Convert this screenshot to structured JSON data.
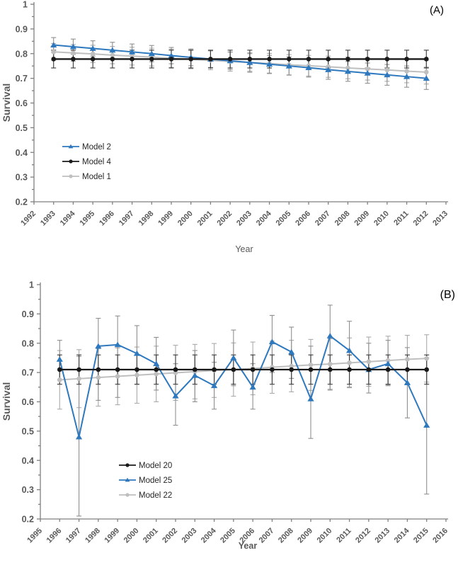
{
  "figure": {
    "background": "#ffffff"
  },
  "style": {
    "axis_color": "#7f7f7f",
    "tick_label_color": "#595959",
    "axis_label_color": "#595959",
    "legend_text_color": "#262626",
    "panel_label_color": "#000000",
    "blue": "#2e78be",
    "black": "#1a1a1a",
    "gray": "#bfbfbf"
  },
  "chart_data": [
    {
      "type": "line",
      "panel_label": "(A)",
      "xlabel": "Year",
      "ylabel": "Survival",
      "ylim": [
        0.2,
        1.0
      ],
      "ytick_labels": [
        "1",
        "0.9",
        "0.8",
        "0.7",
        "0.6",
        "0.5",
        "0.4",
        "0.3",
        "0.2"
      ],
      "ytick_values": [
        1,
        0.9,
        0.8,
        0.7,
        0.6,
        0.5,
        0.4,
        0.3,
        0.2
      ],
      "yminor_values": [
        0.95,
        0.85,
        0.75,
        0.65,
        0.55,
        0.45,
        0.35,
        0.25
      ],
      "xtick_labels": [
        "1992",
        "1993",
        "1994",
        "1995",
        "1996",
        "1997",
        "1998",
        "1999",
        "2000",
        "2001",
        "2002",
        "2003",
        "2004",
        "2005",
        "2006",
        "2007",
        "2008",
        "2009",
        "2010",
        "2011",
        "2012",
        "2013"
      ],
      "xlim": [
        1992,
        2013
      ],
      "grid": false,
      "legend_position": "inside-left",
      "series": [
        {
          "name": "Model 2",
          "marker": "triangle",
          "color": "#2e78be",
          "err_color": "#8f8f8f",
          "x": [
            1993,
            1994,
            1995,
            1996,
            1997,
            1998,
            1999,
            2000,
            2001,
            2002,
            2003,
            2004,
            2005,
            2006,
            2007,
            2008,
            2009,
            2010,
            2011,
            2012
          ],
          "y": [
            0.835,
            0.828,
            0.821,
            0.814,
            0.807,
            0.8,
            0.792,
            0.785,
            0.778,
            0.771,
            0.764,
            0.757,
            0.75,
            0.743,
            0.735,
            0.728,
            0.721,
            0.714,
            0.707,
            0.7
          ],
          "err_lo": [
            0.03,
            0.031,
            0.031,
            0.032,
            0.032,
            0.033,
            0.033,
            0.034,
            0.034,
            0.035,
            0.036,
            0.036,
            0.037,
            0.038,
            0.039,
            0.04,
            0.041,
            0.042,
            0.043,
            0.045
          ],
          "err_hi": [
            0.03,
            0.031,
            0.031,
            0.032,
            0.032,
            0.033,
            0.033,
            0.034,
            0.034,
            0.035,
            0.036,
            0.036,
            0.037,
            0.038,
            0.039,
            0.04,
            0.041,
            0.042,
            0.043,
            0.045
          ]
        },
        {
          "name": "Model 4",
          "marker": "circle",
          "color": "#1a1a1a",
          "err_color": "#3a3a3a",
          "x": [
            1993,
            1994,
            1995,
            1996,
            1997,
            1998,
            1999,
            2000,
            2001,
            2002,
            2003,
            2004,
            2005,
            2006,
            2007,
            2008,
            2009,
            2010,
            2011,
            2012
          ],
          "y": [
            0.778,
            0.778,
            0.778,
            0.778,
            0.778,
            0.778,
            0.778,
            0.778,
            0.778,
            0.778,
            0.778,
            0.778,
            0.778,
            0.778,
            0.778,
            0.778,
            0.778,
            0.778,
            0.778,
            0.778
          ],
          "err_lo": [
            0.036,
            0.036,
            0.036,
            0.036,
            0.036,
            0.036,
            0.036,
            0.036,
            0.036,
            0.036,
            0.036,
            0.036,
            0.036,
            0.036,
            0.036,
            0.036,
            0.036,
            0.036,
            0.036,
            0.036
          ],
          "err_hi": [
            0.036,
            0.036,
            0.036,
            0.036,
            0.036,
            0.036,
            0.036,
            0.036,
            0.036,
            0.036,
            0.036,
            0.036,
            0.036,
            0.036,
            0.036,
            0.036,
            0.036,
            0.036,
            0.036,
            0.036
          ]
        },
        {
          "name": "Model 1",
          "marker": "circle",
          "color": "#bfbfbf",
          "err_color": "#aaaaaa",
          "x": [
            1993,
            1994,
            1995,
            1996,
            1997,
            1998,
            1999,
            2000,
            2001,
            2002,
            2003,
            2004,
            2005,
            2006,
            2007,
            2008,
            2009,
            2010,
            2011,
            2012
          ],
          "y": [
            0.807,
            0.803,
            0.799,
            0.794,
            0.79,
            0.786,
            0.781,
            0.777,
            0.773,
            0.768,
            0.764,
            0.76,
            0.755,
            0.751,
            0.747,
            0.742,
            0.738,
            0.734,
            0.729,
            0.725
          ],
          "err_lo": [
            0.034,
            0.034,
            0.035,
            0.035,
            0.036,
            0.036,
            0.037,
            0.038,
            0.038,
            0.039,
            0.04,
            0.041,
            0.041,
            0.042,
            0.043,
            0.044,
            0.045,
            0.046,
            0.047,
            0.048
          ],
          "err_hi": [
            0.034,
            0.034,
            0.035,
            0.035,
            0.036,
            0.036,
            0.037,
            0.038,
            0.038,
            0.039,
            0.04,
            0.041,
            0.041,
            0.042,
            0.043,
            0.044,
            0.045,
            0.046,
            0.047,
            0.048
          ]
        }
      ]
    },
    {
      "type": "line",
      "panel_label": "(B)",
      "xlabel": "Year",
      "ylabel": "Survival",
      "ylim": [
        0.2,
        1.0
      ],
      "ytick_labels": [
        "1",
        "0.9",
        "0.8",
        "0.7",
        "0.6",
        "0.5",
        "0.4",
        "0.3",
        "0.2"
      ],
      "ytick_values": [
        1,
        0.9,
        0.8,
        0.7,
        0.6,
        0.5,
        0.4,
        0.3,
        0.2
      ],
      "yminor_values": [
        0.95,
        0.85,
        0.75,
        0.65,
        0.55,
        0.45,
        0.35,
        0.25
      ],
      "xtick_labels": [
        "1995",
        "1996",
        "1997",
        "1998",
        "1999",
        "2000",
        "2001",
        "2002",
        "2003",
        "2004",
        "2005",
        "2006",
        "2007",
        "2008",
        "2009",
        "2010",
        "2011",
        "2012",
        "2013",
        "2014",
        "2015",
        "2016"
      ],
      "xlim": [
        1995,
        2016
      ],
      "grid": false,
      "legend_position": "inside-bottom",
      "series": [
        {
          "name": "Model 20",
          "marker": "circle",
          "color": "#1a1a1a",
          "err_color": "#3a3a3a",
          "x": [
            1996,
            1997,
            1998,
            1999,
            2000,
            2001,
            2002,
            2003,
            2004,
            2005,
            2006,
            2007,
            2008,
            2009,
            2010,
            2011,
            2012,
            2013,
            2014,
            2015
          ],
          "y": [
            0.71,
            0.71,
            0.71,
            0.71,
            0.71,
            0.71,
            0.71,
            0.71,
            0.71,
            0.71,
            0.71,
            0.71,
            0.71,
            0.71,
            0.71,
            0.71,
            0.71,
            0.71,
            0.71,
            0.71
          ],
          "err_lo": [
            0.05,
            0.05,
            0.05,
            0.05,
            0.05,
            0.05,
            0.05,
            0.05,
            0.05,
            0.05,
            0.05,
            0.05,
            0.05,
            0.05,
            0.05,
            0.05,
            0.05,
            0.05,
            0.05,
            0.05
          ],
          "err_hi": [
            0.05,
            0.05,
            0.05,
            0.05,
            0.05,
            0.05,
            0.05,
            0.05,
            0.05,
            0.05,
            0.05,
            0.05,
            0.05,
            0.05,
            0.05,
            0.05,
            0.05,
            0.05,
            0.05,
            0.05
          ]
        },
        {
          "name": "Model 25",
          "marker": "triangle",
          "color": "#2e78be",
          "err_color": "#8f8f8f",
          "x": [
            1996,
            1997,
            1998,
            1999,
            2000,
            2001,
            2002,
            2003,
            2004,
            2005,
            2006,
            2007,
            2008,
            2009,
            2010,
            2011,
            2012,
            2013,
            2014,
            2015
          ],
          "y": [
            0.745,
            0.48,
            0.79,
            0.795,
            0.765,
            0.73,
            0.62,
            0.69,
            0.655,
            0.75,
            0.65,
            0.805,
            0.77,
            0.61,
            0.825,
            0.775,
            0.71,
            0.73,
            0.665,
            0.52
          ],
          "err_lo": [
            0.07,
            0.27,
            0.185,
            0.18,
            0.105,
            0.09,
            0.1,
            0.09,
            0.08,
            0.095,
            0.075,
            0.105,
            0.09,
            0.135,
            0.185,
            0.125,
            0.08,
            0.075,
            0.12,
            0.235
          ],
          "err_hi": [
            0.065,
            0.275,
            0.095,
            0.098,
            0.095,
            0.09,
            0.11,
            0.085,
            0.08,
            0.095,
            0.08,
            0.09,
            0.085,
            0.18,
            0.105,
            0.1,
            0.09,
            0.08,
            0.12,
            0.23
          ]
        },
        {
          "name": "Model 22",
          "marker": "circle",
          "color": "#bfbfbf",
          "err_color": "#aaaaaa",
          "x": [
            1996,
            1997,
            1998,
            1999,
            2000,
            2001,
            2002,
            2003,
            2004,
            2005,
            2006,
            2007,
            2008,
            2009,
            2010,
            2011,
            2012,
            2013,
            2014,
            2015
          ],
          "y": [
            0.675,
            0.679,
            0.683,
            0.687,
            0.691,
            0.695,
            0.699,
            0.703,
            0.707,
            0.71,
            0.714,
            0.718,
            0.722,
            0.726,
            0.729,
            0.733,
            0.737,
            0.741,
            0.745,
            0.748
          ],
          "err_lo": [
            0.1,
            0.099,
            0.098,
            0.097,
            0.096,
            0.095,
            0.094,
            0.093,
            0.092,
            0.091,
            0.09,
            0.089,
            0.088,
            0.087,
            0.086,
            0.085,
            0.084,
            0.083,
            0.082,
            0.081
          ],
          "err_hi": [
            0.1,
            0.099,
            0.098,
            0.097,
            0.096,
            0.095,
            0.094,
            0.093,
            0.092,
            0.091,
            0.09,
            0.089,
            0.088,
            0.087,
            0.086,
            0.085,
            0.084,
            0.083,
            0.082,
            0.081
          ]
        }
      ]
    }
  ]
}
